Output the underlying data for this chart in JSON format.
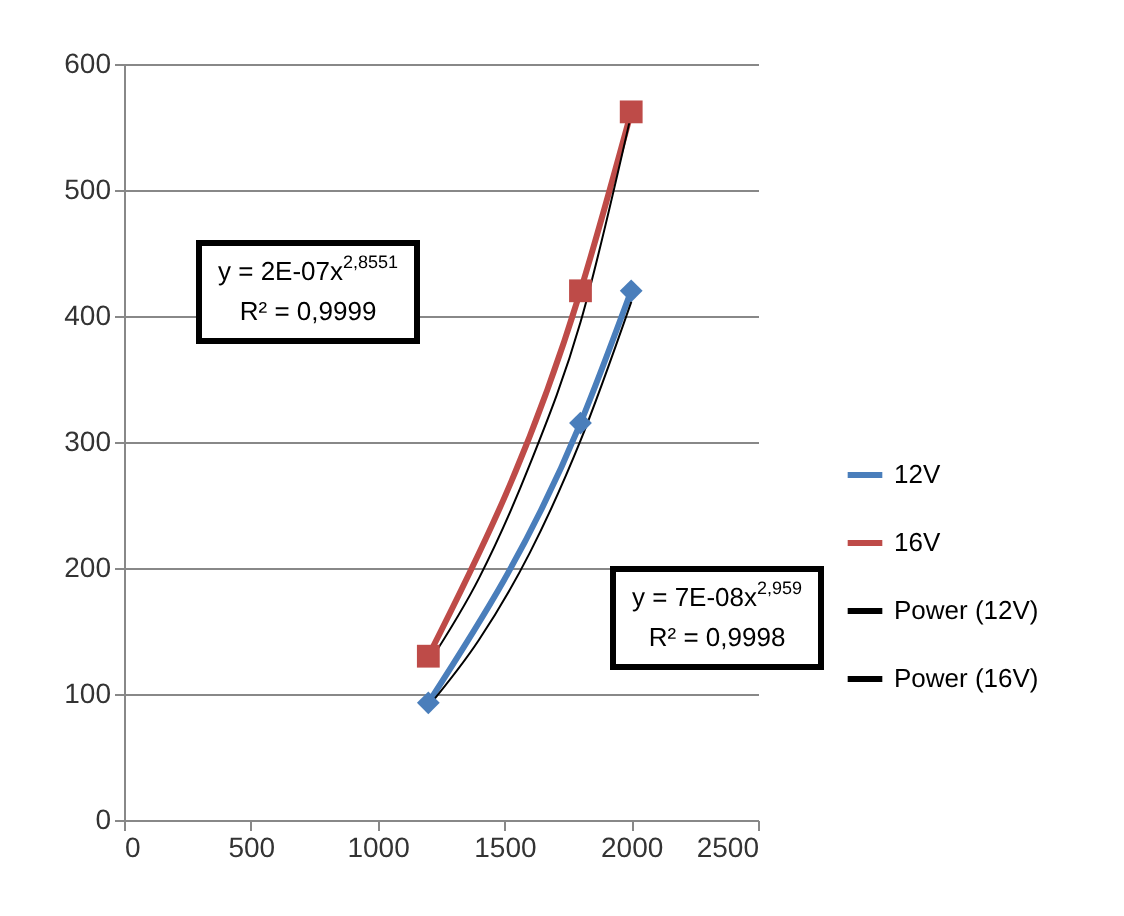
{
  "chart_data": {
    "type": "line",
    "series": [
      {
        "name": "12V",
        "color": "#4a7ebb",
        "marker": "diamond",
        "x": [
          1200,
          1800,
          2000
        ],
        "values": [
          93,
          315,
          420
        ]
      },
      {
        "name": "16V",
        "color": "#be4b48",
        "marker": "square",
        "x": [
          1200,
          1800,
          2000
        ],
        "values": [
          130,
          420,
          562
        ]
      },
      {
        "name": "Power (12V)",
        "color": "#000000",
        "marker": "none",
        "x": [
          1200,
          1400,
          1600,
          1800,
          2000
        ],
        "values": [
          90,
          143,
          212,
          301,
          411
        ]
      },
      {
        "name": "Power (16V)",
        "color": "#000000",
        "marker": "none",
        "x": [
          1200,
          1400,
          1600,
          1800,
          2000
        ],
        "values": [
          124,
          192,
          282,
          395,
          560
        ]
      }
    ],
    "xlim": [
      0,
      2500
    ],
    "xticks": [
      0,
      500,
      1000,
      1500,
      2000,
      2500
    ],
    "ylim": [
      0,
      600
    ],
    "yticks": [
      0,
      100,
      200,
      300,
      400,
      500,
      600
    ],
    "grid": "y",
    "legend": "right",
    "annotations": [
      "y = 2E-07x$^{2,8551}$\nR² = 0,9999",
      "y = 7E-08x$^{2,959}$\nR² = 0,9998"
    ]
  }
}
